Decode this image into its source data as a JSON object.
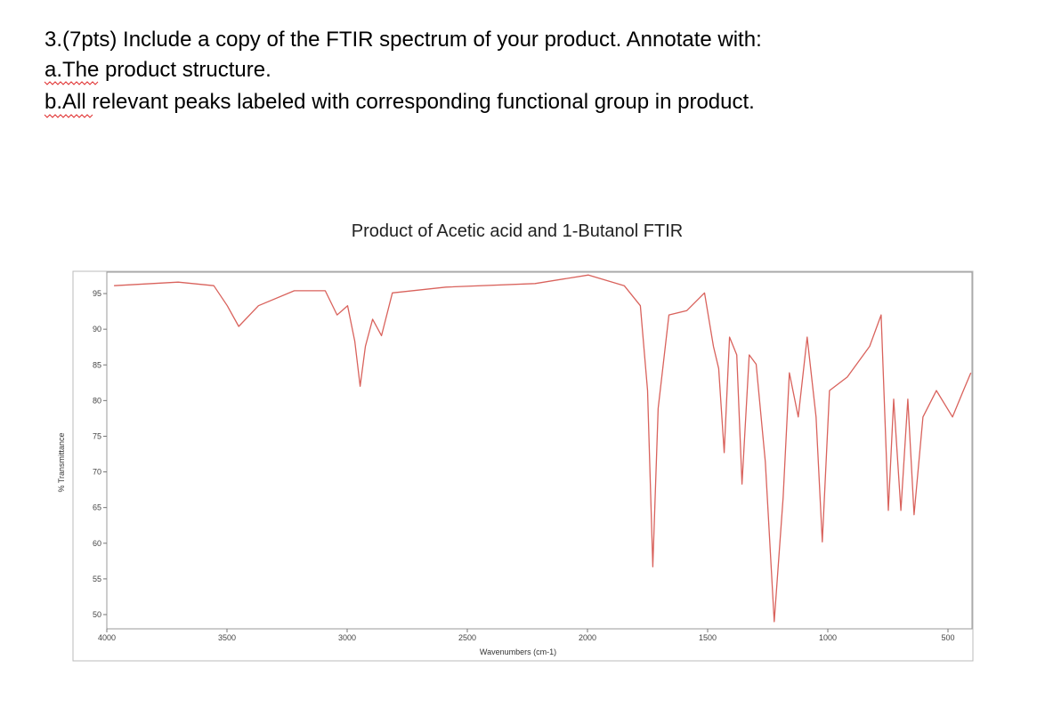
{
  "question": {
    "lines": [
      "3.(7pts) Include a copy of the FTIR spectrum of your product. Annotate with:",
      "a.The product structure.",
      "b.All relevant peaks labeled with corresponding functional group in product."
    ]
  },
  "chart_data": {
    "type": "line",
    "title": "Product of Acetic acid and 1-Butanol FTIR",
    "x_label": "Wavenumbers (cm-1)",
    "y_label": "% Transmittance",
    "color": "#d9625c",
    "x": [
      3970,
      3703,
      3555,
      3499,
      3451,
      3369,
      3220,
      3091,
      3042,
      2998,
      2968,
      2946,
      2924,
      2894,
      2857,
      2812,
      2589,
      2218,
      1996,
      1847,
      1780,
      1750,
      1728,
      1706,
      1661,
      1587,
      1513,
      1476,
      1454,
      1431,
      1409,
      1379,
      1357,
      1327,
      1298,
      1260,
      1223,
      1186,
      1160,
      1123,
      1086,
      1049,
      1023,
      993,
      919,
      826,
      778,
      748,
      726,
      696,
      667,
      641,
      604,
      548,
      481,
      436,
      405
    ],
    "values": [
      96.1,
      96.6,
      96.1,
      93.3,
      90.4,
      93.3,
      95.4,
      95.4,
      92.0,
      93.3,
      88.3,
      82.0,
      87.6,
      91.4,
      89.1,
      95.1,
      95.9,
      96.4,
      97.6,
      96.1,
      93.3,
      81.4,
      56.7,
      78.9,
      92.0,
      92.6,
      95.1,
      87.6,
      84.5,
      72.7,
      88.9,
      86.4,
      68.3,
      86.4,
      85.1,
      71.4,
      49.0,
      66.4,
      83.9,
      77.7,
      88.9,
      77.7,
      60.2,
      81.4,
      83.3,
      87.6,
      92.0,
      64.6,
      80.2,
      64.6,
      80.2,
      64.0,
      77.7,
      81.4,
      77.7,
      81.4,
      83.9
    ],
    "xlim": [
      4000,
      400
    ],
    "ylim": [
      48,
      98
    ],
    "xticks": [
      4000,
      3500,
      3000,
      2500,
      2000,
      1500,
      1000,
      500
    ],
    "yticks": [
      50,
      55,
      60,
      65,
      70,
      75,
      80,
      85,
      90,
      95
    ]
  }
}
